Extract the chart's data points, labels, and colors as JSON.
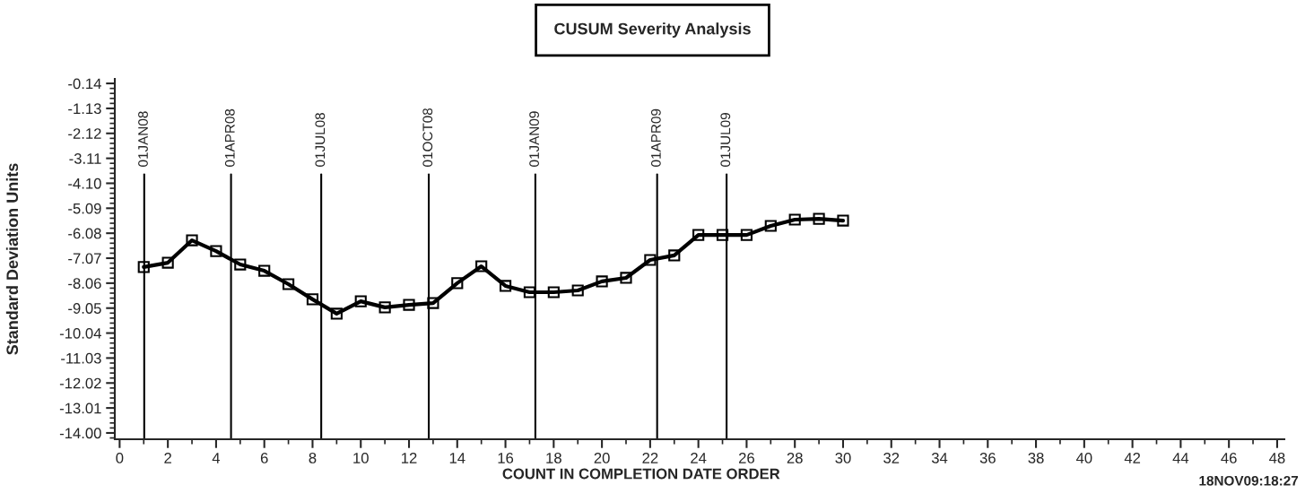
{
  "chart_data": {
    "type": "line",
    "title": "CUSUM Severity Analysis",
    "xlabel": "COUNT IN COMPLETION DATE ORDER",
    "ylabel": "Standard Deviation Units",
    "x": [
      1,
      2,
      3,
      4,
      5,
      6,
      7,
      8,
      9,
      10,
      11,
      12,
      13,
      14,
      15,
      16,
      17,
      18,
      19,
      20,
      21,
      22,
      23,
      24,
      25,
      26,
      27,
      28,
      29,
      30
    ],
    "series": [
      {
        "color": "#000000",
        "values": [
          -7.42,
          -7.25,
          -6.36,
          -6.79,
          -7.32,
          -7.57,
          -8.1,
          -8.7,
          -9.27,
          -8.78,
          -9.02,
          -8.92,
          -8.85,
          -8.06,
          -7.39,
          -8.17,
          -8.42,
          -8.42,
          -8.35,
          -7.99,
          -7.85,
          -7.14,
          -6.96,
          -6.15,
          -6.15,
          -6.15,
          -5.79,
          -5.54,
          -5.51,
          -5.58
        ]
      }
    ],
    "marker": "square",
    "line_style": "solid",
    "grid": false,
    "legend": false,
    "xlim": [
      -0.2,
      48.3
    ],
    "xticks": [
      0,
      2,
      4,
      6,
      8,
      10,
      12,
      14,
      16,
      18,
      20,
      22,
      24,
      26,
      28,
      30,
      32,
      34,
      36,
      38,
      40,
      42,
      44,
      46,
      48
    ],
    "ylim": [
      -14.25,
      0.04
    ],
    "yticks": [
      {
        "value": -14.0,
        "label": "-14.00"
      },
      -13.01,
      -12.02,
      -11.03,
      -10.04,
      -9.05,
      -8.06,
      -7.07,
      -6.08,
      -5.09,
      {
        "value": -4.1,
        "label": "-4.10"
      },
      -3.11,
      -2.12,
      -1.13,
      -0.14
    ],
    "ref_lines": [
      {
        "axis": "x",
        "value": 1.02,
        "label": "01JAN08"
      },
      {
        "axis": "x",
        "value": 4.62,
        "label": "01APR08"
      },
      {
        "axis": "x",
        "value": 8.36,
        "label": "01JUL08"
      },
      {
        "axis": "x",
        "value": 12.82,
        "label": "01OCT08"
      },
      {
        "axis": "x",
        "value": 17.24,
        "label": "01JAN09"
      },
      {
        "axis": "x",
        "value": 22.29,
        "label": "01APR09"
      },
      {
        "axis": "x",
        "value": 25.17,
        "label": "01JUL09"
      }
    ],
    "annotations": [
      "18NOV09:18:27"
    ]
  }
}
